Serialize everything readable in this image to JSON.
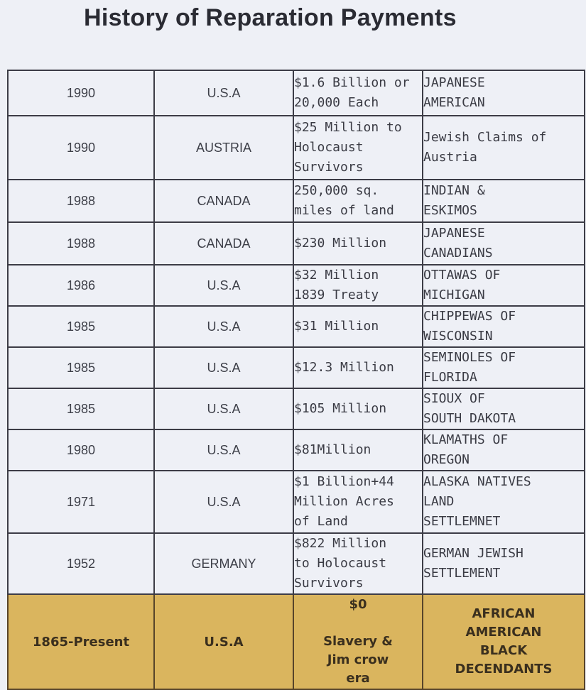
{
  "title": "History of Reparation Payments",
  "rows": [
    {
      "year": "1990",
      "country": "U.S.A",
      "amount": "$1.6 Billion or\n20,000 Each",
      "recipient": "JAPANESE\nAMERICAN"
    },
    {
      "year": "1990",
      "country": "AUSTRIA",
      "amount": "$25 Million to\nHolocaust\nSurvivors",
      "recipient": "Jewish Claims of\nAustria"
    },
    {
      "year": "1988",
      "country": "CANADA",
      "amount": "250,000 sq.\nmiles of land",
      "recipient": "INDIAN &\nESKIMOS"
    },
    {
      "year": "1988",
      "country": "CANADA",
      "amount": "$230 Million",
      "recipient": "JAPANESE\nCANADIANS"
    },
    {
      "year": "1986",
      "country": "U.S.A",
      "amount": "$32 Million\n1839 Treaty",
      "recipient": "OTTAWAS OF\nMICHIGAN"
    },
    {
      "year": "1985",
      "country": "U.S.A",
      "amount": "$31 Million",
      "recipient": "CHIPPEWAS OF\nWISCONSIN"
    },
    {
      "year": "1985",
      "country": "U.S.A",
      "amount": "$12.3 Million",
      "recipient": "SEMINOLES OF\nFLORIDA"
    },
    {
      "year": "1985",
      "country": "U.S.A",
      "amount": "$105 Million",
      "recipient": "SIOUX OF\nSOUTH DAKOTA"
    },
    {
      "year": "1980",
      "country": "U.S.A",
      "amount": "$81Million",
      "recipient": "KLAMATHS OF\nOREGON"
    },
    {
      "year": "1971",
      "country": "U.S.A",
      "amount": "$1 Billion+44\nMillion Acres\nof Land",
      "recipient": "ALASKA NATIVES\nLAND\nSETTLEMNET"
    },
    {
      "year": "1952",
      "country": "GERMANY",
      "amount": "$822 Million\nto Holocaust\nSurvivors",
      "recipient": "GERMAN JEWISH\nSETTLEMENT"
    },
    {
      "year": "1865-Present",
      "country": "U.S.A",
      "amount": "$0\n\nSlavery &\nJim crow\nera",
      "recipient": "AFRICAN\nAMERICAN\nBLACK\nDECENDANTS"
    }
  ]
}
